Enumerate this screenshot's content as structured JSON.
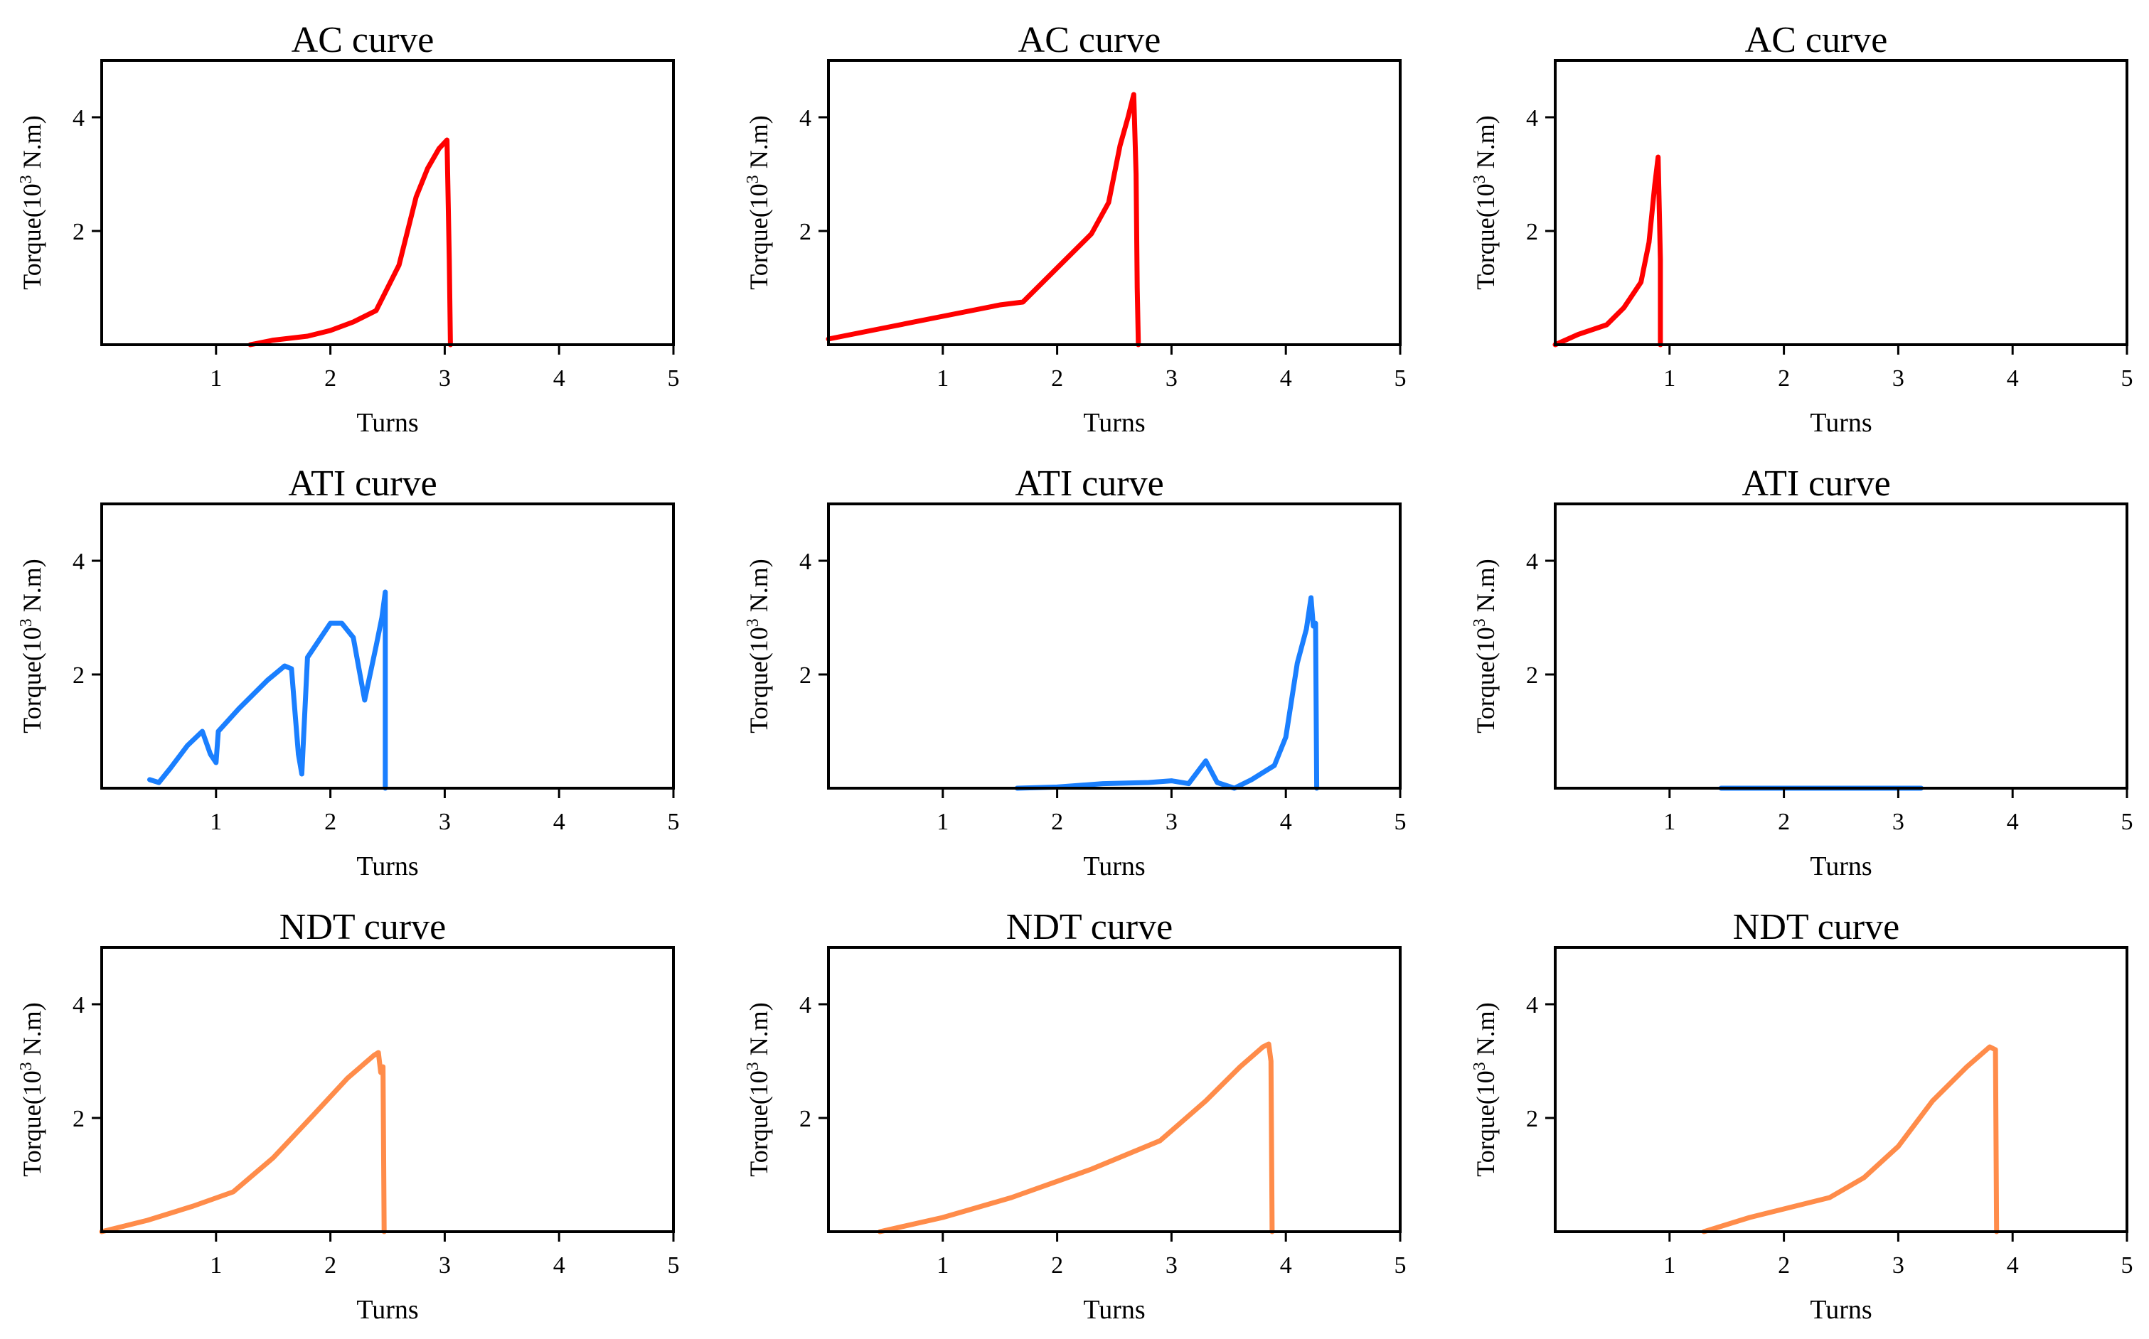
{
  "units": {
    "ylabel_main": "Torque(10",
    "ylabel_sup": "3",
    "ylabel_tail": " N.m)"
  },
  "chart_data": [
    {
      "type": "line",
      "title": "AC curve",
      "xlabel": "Turns",
      "ylabel": "Torque(10^3 N.m)",
      "xlim": [
        0,
        5
      ],
      "ylim": [
        0,
        5
      ],
      "xticks": [
        1,
        2,
        3,
        4,
        5
      ],
      "yticks": [
        2,
        4
      ],
      "color": "#ff0000",
      "series": [
        {
          "x": [
            1.3,
            1.5,
            1.8,
            2.0,
            2.2,
            2.4,
            2.6,
            2.75,
            2.85,
            2.95,
            3.02,
            3.04,
            3.05
          ],
          "y": [
            0.0,
            0.08,
            0.15,
            0.25,
            0.4,
            0.6,
            1.4,
            2.6,
            3.1,
            3.45,
            3.6,
            1.5,
            0.0
          ]
        }
      ]
    },
    {
      "type": "line",
      "title": "AC curve",
      "xlabel": "Turns",
      "ylabel": "Torque(10^3 N.m)",
      "xlim": [
        0,
        5
      ],
      "ylim": [
        0,
        5
      ],
      "xticks": [
        1,
        2,
        3,
        4,
        5
      ],
      "yticks": [
        2,
        4
      ],
      "color": "#ff0000",
      "series": [
        {
          "x": [
            0.0,
            0.5,
            1.0,
            1.5,
            1.7,
            2.0,
            2.3,
            2.45,
            2.55,
            2.62,
            2.67,
            2.69,
            2.7,
            2.71
          ],
          "y": [
            0.1,
            0.3,
            0.5,
            0.7,
            0.75,
            1.35,
            1.95,
            2.5,
            3.5,
            4.0,
            4.4,
            3.0,
            1.0,
            0.0
          ]
        }
      ]
    },
    {
      "type": "line",
      "title": "AC curve",
      "xlabel": "Turns",
      "ylabel": "Torque(10^3 N.m)",
      "xlim": [
        0,
        5
      ],
      "ylim": [
        0,
        5
      ],
      "xticks": [
        1,
        2,
        3,
        4,
        5
      ],
      "yticks": [
        2,
        4
      ],
      "color": "#ff0000",
      "series": [
        {
          "x": [
            0.0,
            0.2,
            0.45,
            0.6,
            0.75,
            0.82,
            0.87,
            0.9,
            0.92,
            0.92
          ],
          "y": [
            0.0,
            0.18,
            0.35,
            0.65,
            1.1,
            1.8,
            2.8,
            3.3,
            1.5,
            0.0
          ]
        }
      ]
    },
    {
      "type": "line",
      "title": "ATI curve",
      "xlabel": "Turns",
      "ylabel": "Torque(10^3 N.m)",
      "xlim": [
        0,
        5
      ],
      "ylim": [
        0,
        5
      ],
      "xticks": [
        1,
        2,
        3,
        4,
        5
      ],
      "yticks": [
        2,
        4
      ],
      "color": "#1a7fff",
      "series": [
        {
          "x": [
            0.42,
            0.5,
            0.6,
            0.75,
            0.88,
            0.95,
            1.0,
            1.02,
            1.2,
            1.45,
            1.6,
            1.66,
            1.72,
            1.75,
            1.8,
            2.0,
            2.1,
            2.2,
            2.3,
            2.4,
            2.45,
            2.48,
            2.48
          ],
          "y": [
            0.15,
            0.1,
            0.35,
            0.75,
            1.0,
            0.6,
            0.45,
            1.0,
            1.4,
            1.9,
            2.15,
            2.1,
            0.6,
            0.25,
            2.3,
            2.9,
            2.9,
            2.65,
            1.55,
            2.5,
            3.0,
            3.45,
            0.0
          ]
        }
      ]
    },
    {
      "type": "line",
      "title": "ATI curve",
      "xlabel": "Turns",
      "ylabel": "Torque(10^3 N.m)",
      "xlim": [
        0,
        5
      ],
      "ylim": [
        0,
        5
      ],
      "xticks": [
        1,
        2,
        3,
        4,
        5
      ],
      "yticks": [
        2,
        4
      ],
      "color": "#1a7fff",
      "series": [
        {
          "x": [
            1.65,
            2.0,
            2.4,
            2.8,
            3.0,
            3.15,
            3.3,
            3.4,
            3.55,
            3.7,
            3.9,
            4.0,
            4.1,
            4.18,
            4.22,
            4.24,
            4.26,
            4.27
          ],
          "y": [
            0.0,
            0.02,
            0.08,
            0.1,
            0.13,
            0.08,
            0.48,
            0.1,
            0.0,
            0.15,
            0.4,
            0.9,
            2.2,
            2.8,
            3.35,
            2.85,
            2.9,
            0.0
          ]
        }
      ]
    },
    {
      "type": "line",
      "title": "ATI curve",
      "xlabel": "Turns",
      "ylabel": "Torque(10^3 N.m)",
      "xlim": [
        0,
        5
      ],
      "ylim": [
        0,
        5
      ],
      "xticks": [
        1,
        2,
        3,
        4,
        5
      ],
      "yticks": [
        2,
        4
      ],
      "color": "#1a7fff",
      "series": [
        {
          "x": [
            1.45,
            3.2
          ],
          "y": [
            0.0,
            0.0
          ]
        }
      ]
    },
    {
      "type": "line",
      "title": "NDT curve",
      "xlabel": "Turns",
      "ylabel": "Torque(10^3 N.m)",
      "xlim": [
        0,
        5
      ],
      "ylim": [
        0,
        5
      ],
      "xticks": [
        1,
        2,
        3,
        4,
        5
      ],
      "yticks": [
        2,
        4
      ],
      "color": "#ff8c4a",
      "series": [
        {
          "x": [
            0.0,
            0.4,
            0.8,
            1.15,
            1.5,
            1.85,
            2.15,
            2.38,
            2.42,
            2.44,
            2.46,
            2.47
          ],
          "y": [
            0.0,
            0.2,
            0.45,
            0.7,
            1.3,
            2.05,
            2.7,
            3.1,
            3.15,
            2.8,
            2.9,
            0.0
          ]
        }
      ]
    },
    {
      "type": "line",
      "title": "NDT curve",
      "xlabel": "Turns",
      "ylabel": "Torque(10^3 N.m)",
      "xlim": [
        0,
        5
      ],
      "ylim": [
        0,
        5
      ],
      "xticks": [
        1,
        2,
        3,
        4,
        5
      ],
      "yticks": [
        2,
        4
      ],
      "color": "#ff8c4a",
      "series": [
        {
          "x": [
            0.45,
            1.0,
            1.6,
            2.3,
            2.9,
            3.3,
            3.6,
            3.8,
            3.85,
            3.87,
            3.88
          ],
          "y": [
            0.0,
            0.25,
            0.6,
            1.1,
            1.6,
            2.3,
            2.9,
            3.25,
            3.3,
            3.0,
            0.0
          ]
        }
      ]
    },
    {
      "type": "line",
      "title": "NDT curve",
      "xlabel": "Turns",
      "ylabel": "Torque(10^3 N.m)",
      "xlim": [
        0,
        5
      ],
      "ylim": [
        0,
        5
      ],
      "xticks": [
        1,
        2,
        3,
        4,
        5
      ],
      "yticks": [
        2,
        4
      ],
      "color": "#ff8c4a",
      "series": [
        {
          "x": [
            1.3,
            1.7,
            2.1,
            2.4,
            2.7,
            3.0,
            3.3,
            3.6,
            3.8,
            3.85,
            3.86
          ],
          "y": [
            0.0,
            0.25,
            0.45,
            0.6,
            0.95,
            1.5,
            2.3,
            2.9,
            3.25,
            3.2,
            0.0
          ]
        }
      ]
    }
  ]
}
